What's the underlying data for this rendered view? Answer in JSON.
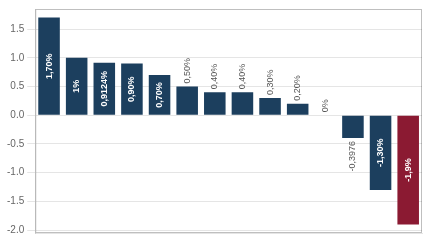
{
  "chart_data": {
    "type": "bar",
    "categories": [
      null,
      null,
      null,
      null,
      null,
      null,
      null,
      null,
      null,
      null,
      null,
      null,
      null,
      null
    ],
    "values": [
      1.7,
      1.0,
      0.9124,
      0.9,
      0.7,
      0.5,
      0.4,
      0.4,
      0.3,
      0.2,
      0.0,
      -0.3976,
      -1.3,
      -1.9
    ],
    "value_labels": [
      "1,70%",
      "1%",
      "0,9124%",
      "0,90%",
      "0,70%",
      "0,50%",
      "0,40%",
      "0,40%",
      "0,30%",
      "0,20%",
      "0%",
      "-0,3976",
      "-1,30%",
      "-1,9%"
    ],
    "colors": [
      "#1c3f5e",
      "#1c3f5e",
      "#1c3f5e",
      "#1c3f5e",
      "#1c3f5e",
      "#1c3f5e",
      "#1c3f5e",
      "#1c3f5e",
      "#1c3f5e",
      "#1c3f5e",
      "#1c3f5e",
      "#1c3f5e",
      "#1c3f5e",
      "#8b1a32"
    ],
    "ylim": [
      -2.05,
      1.85
    ],
    "yticks": [
      {
        "value": -2,
        "label": "-2.0"
      },
      -1.5,
      {
        "value": -1,
        "label": "-1.0"
      },
      -0.5,
      {
        "value": 0,
        "label": "0.0"
      },
      0.5,
      {
        "value": 1,
        "label": "1.0"
      },
      1.5
    ],
    "grid": true,
    "data_labels": true,
    "tick_labels": "y"
  }
}
